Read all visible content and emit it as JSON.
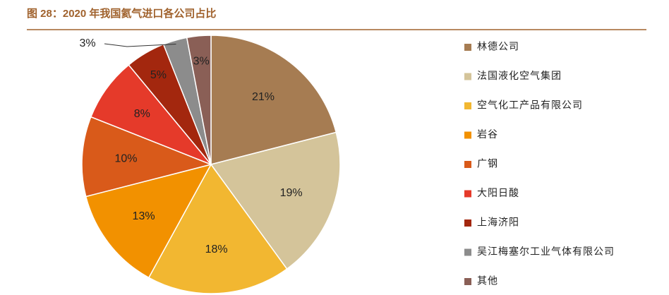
{
  "chart_data": {
    "type": "pie",
    "title": "图 28：2020 年我国氦气进口各公司占比",
    "categories": [
      "林德公司",
      "法国液化空气集团",
      "空气化工产品有限公司",
      "岩谷",
      "广钢",
      "大阳日酸",
      "上海济阳",
      "吴江梅塞尔工业气体有限公司",
      "其他"
    ],
    "values": [
      21,
      19,
      18,
      13,
      10,
      8,
      5,
      3,
      3
    ],
    "value_labels": [
      "21%",
      "19%",
      "18%",
      "13%",
      "10%",
      "8%",
      "5%",
      "3%",
      "3%"
    ],
    "colors": [
      "#a67c52",
      "#d4c49a",
      "#f2b731",
      "#f29100",
      "#d95a1a",
      "#e53a2a",
      "#a3270e",
      "#8c8c8c",
      "#8a5f56"
    ],
    "legend": "right"
  }
}
